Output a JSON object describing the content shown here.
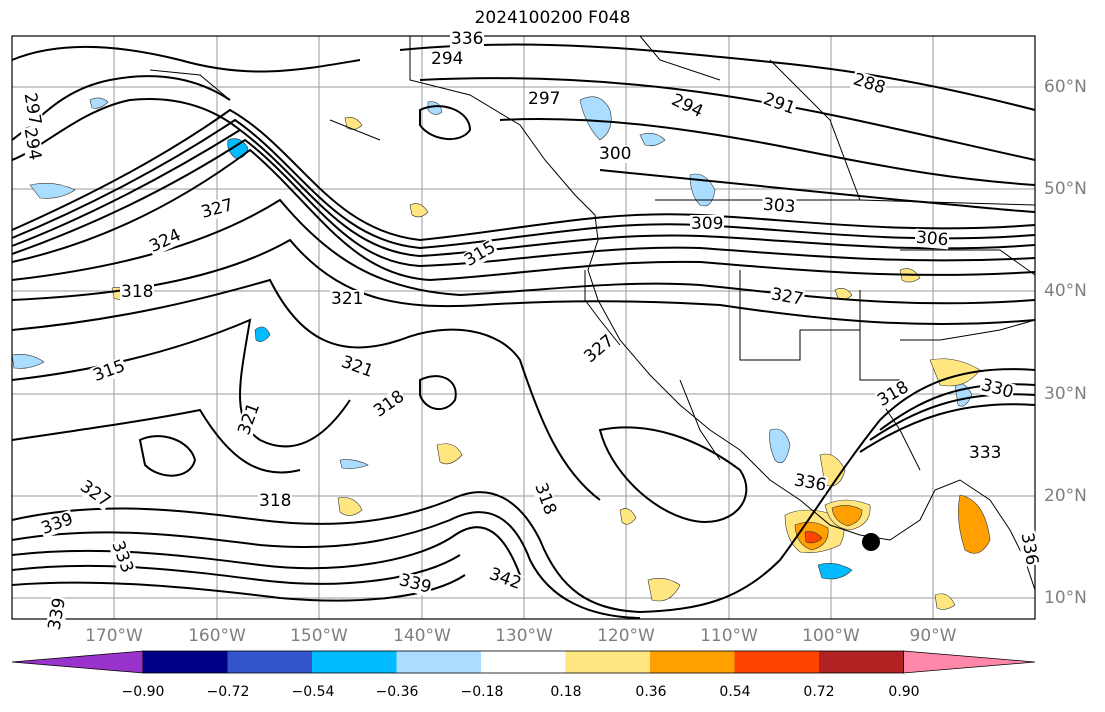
{
  "title": "2024100200 F048",
  "lat_labels": [
    "60°N",
    "50°N",
    "40°N",
    "30°N",
    "20°N",
    "10°N"
  ],
  "lon_labels": [
    "170°W",
    "160°W",
    "150°W",
    "140°W",
    "130°W",
    "120°W",
    "110°W",
    "100°W",
    "90°W"
  ],
  "contour_labels": [
    "294",
    "297",
    "294",
    "291",
    "288",
    "300",
    "303",
    "309",
    "306",
    "297",
    "294",
    "327",
    "324",
    "321",
    "318",
    "315",
    "321",
    "318",
    "321",
    "315",
    "327",
    "318",
    "318",
    "327",
    "336",
    "318",
    "336",
    "333",
    "336",
    "339",
    "342",
    "339",
    "327",
    "333",
    "330",
    "339"
  ],
  "colorbar": {
    "tick_labels": [
      "−0.90",
      "−0.72",
      "−0.54",
      "−0.36",
      "−0.18",
      "0.18",
      "0.36",
      "0.54",
      "0.72",
      "0.90"
    ],
    "colors": [
      "#9933cc",
      "#000088",
      "#3355cc",
      "#00bbff",
      "#aaddff",
      "#ffffff",
      "#ffe680",
      "#ffa000",
      "#ff4400",
      "#b22222",
      "#ff88aa"
    ]
  }
}
